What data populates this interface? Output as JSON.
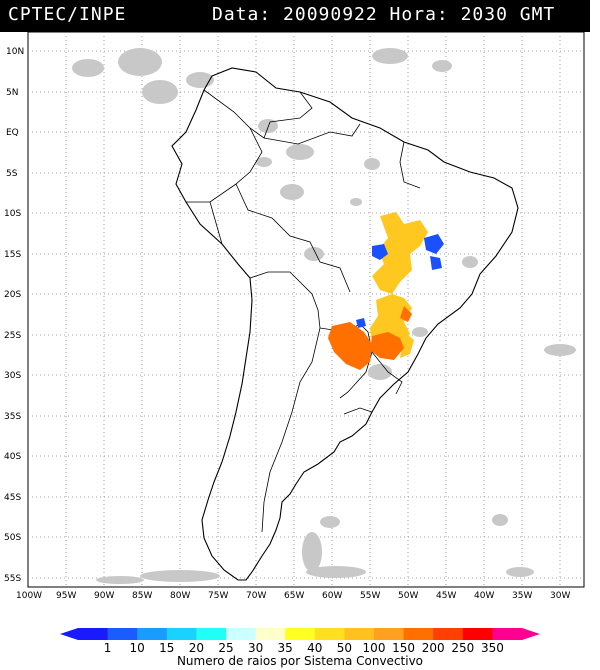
{
  "header": {
    "source": "CPTEC/INPE",
    "datetime": "Data: 20090922 Hora: 2030 GMT"
  },
  "map": {
    "lat_labels": [
      "10N",
      "5N",
      "EQ",
      "5S",
      "10S",
      "15S",
      "20S",
      "25S",
      "30S",
      "35S",
      "40S",
      "45S",
      "50S",
      "55S"
    ],
    "lon_labels": [
      "100W",
      "95W",
      "90W",
      "85W",
      "80W",
      "75W",
      "70W",
      "65W",
      "60W",
      "55W",
      "50W",
      "45W",
      "40W",
      "35W",
      "30W"
    ],
    "lon_range": [
      -100,
      -27
    ],
    "lat_range": [
      -56,
      13
    ]
  },
  "colorbar": {
    "ticks": [
      "1",
      "10",
      "15",
      "20",
      "25",
      "30",
      "35",
      "40",
      "50",
      "100",
      "150",
      "200",
      "250",
      "350"
    ],
    "colors": [
      "#1a1aff",
      "#1a5cff",
      "#1a9cff",
      "#1ad2ff",
      "#20fff5",
      "#ccffff",
      "#ffffcc",
      "#ffff20",
      "#ffe020",
      "#ffc020",
      "#ffa020",
      "#ff7000",
      "#ff4000",
      "#ff0000",
      "#ff0090"
    ],
    "caption": "Numero de raios por Sistema Convectivo"
  },
  "colors": {
    "header_bg": "#000000",
    "header_text": "#ffffff",
    "cloud_gray": "#c8c8c8",
    "yellow_cells": "#ffc820",
    "orange_cells": "#ff7000",
    "blue_cells": "#1a50ff"
  }
}
